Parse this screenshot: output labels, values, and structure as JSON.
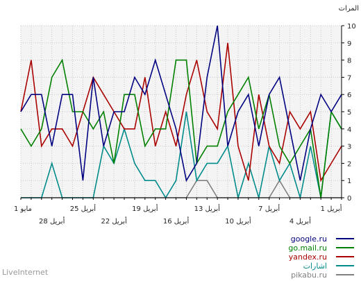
{
  "footer": "LiveInternet",
  "chart_data": {
    "type": "line",
    "ylabel": "المرات",
    "ylim": [
      0,
      10
    ],
    "yticks": [
      0,
      1,
      2,
      3,
      4,
      5,
      6,
      7,
      8,
      9,
      10
    ],
    "x": [
      0,
      1,
      2,
      3,
      4,
      5,
      6,
      7,
      8,
      9,
      10,
      11,
      12,
      13,
      14,
      15,
      16,
      17,
      18,
      19,
      20,
      21,
      22,
      23,
      24,
      25,
      26,
      27,
      28,
      29,
      30,
      31
    ],
    "xticks_top": [
      {
        "x": 0,
        "label": "1 مايو"
      },
      {
        "x": 6,
        "label": "25 أبريل"
      },
      {
        "x": 12,
        "label": "19 أبريل"
      },
      {
        "x": 18,
        "label": "13 أبريل"
      },
      {
        "x": 24,
        "label": "7 أبريل"
      },
      {
        "x": 30,
        "label": "1 أبريل"
      }
    ],
    "xticks_bottom": [
      {
        "x": 3,
        "label": "28 أبريل"
      },
      {
        "x": 9,
        "label": "22 أبريل"
      },
      {
        "x": 15,
        "label": "16 أبريل"
      },
      {
        "x": 21,
        "label": "10 أبريل"
      },
      {
        "x": 27,
        "label": "4 أبريل"
      }
    ],
    "series": [
      {
        "name": "google.ru",
        "color": "#000080",
        "values": [
          5,
          6,
          6,
          3,
          6,
          6,
          1,
          7,
          3,
          5,
          5,
          7,
          6,
          8,
          6,
          4,
          1,
          2,
          7,
          10,
          3,
          5,
          6,
          3,
          6,
          7,
          4,
          1,
          4,
          6,
          5,
          6
        ]
      },
      {
        "name": "go.mail.ru",
        "color": "#008000",
        "values": [
          4,
          3,
          4,
          7,
          8,
          5,
          5,
          4,
          5,
          2,
          6,
          6,
          3,
          4,
          4,
          8,
          8,
          2,
          3,
          3,
          5,
          6,
          7,
          4,
          6,
          3,
          2,
          3,
          4,
          0,
          5,
          4
        ]
      },
      {
        "name": "yandex.ru",
        "color": "#aa0000",
        "values": [
          5,
          8,
          3,
          4,
          4,
          3,
          5,
          7,
          6,
          5,
          4,
          4,
          7,
          3,
          5,
          3,
          6,
          8,
          5,
          4,
          9,
          3,
          1,
          6,
          3,
          2,
          5,
          4,
          5,
          1,
          2,
          3
        ]
      },
      {
        "name": "اشارات",
        "color": "#008b8b",
        "values": [
          0,
          0,
          0,
          2,
          0,
          0,
          0,
          0,
          3,
          2,
          4,
          2,
          1,
          1,
          0,
          1,
          5,
          1,
          2,
          2,
          3,
          0,
          2,
          0,
          3,
          1,
          2,
          0,
          3,
          0,
          5,
          4
        ]
      },
      {
        "name": "pikabu.ru",
        "color": "#808080",
        "values": [
          0,
          0,
          0,
          0,
          0,
          0,
          0,
          0,
          0,
          0,
          0,
          0,
          0,
          0,
          0,
          0,
          0,
          1,
          1,
          0,
          0,
          0,
          0,
          0,
          0,
          1,
          0,
          0,
          0,
          0,
          0,
          0
        ]
      }
    ]
  }
}
